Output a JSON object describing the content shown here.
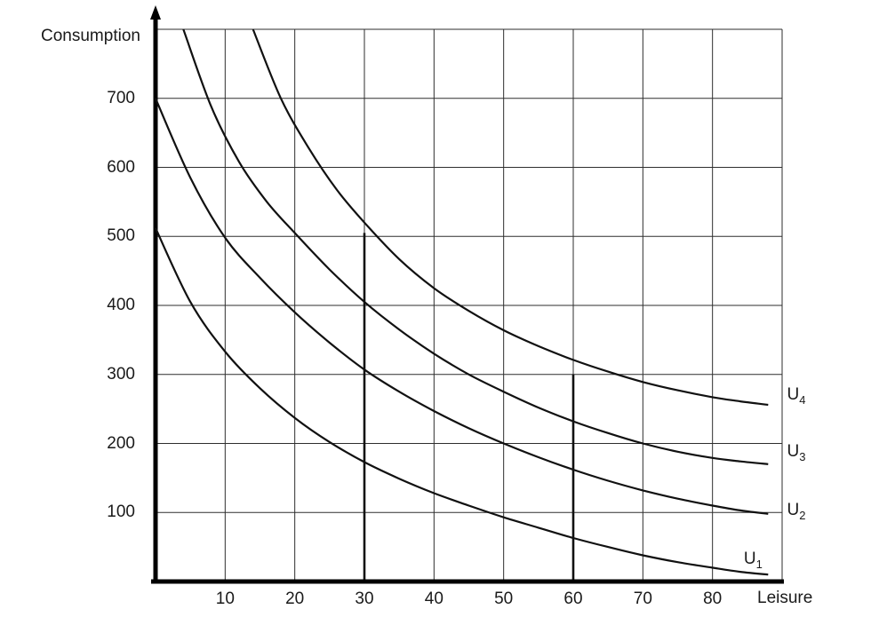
{
  "chart_data": {
    "type": "line",
    "title": "",
    "xlabel": "Leisure",
    "ylabel": "Consumption",
    "xlim": [
      0,
      90
    ],
    "ylim": [
      0,
      800
    ],
    "xticks": [
      10,
      20,
      30,
      40,
      50,
      60,
      70,
      80
    ],
    "yticks": [
      100,
      200,
      300,
      400,
      500,
      600,
      700
    ],
    "xgrid_step": 10,
    "ygrid_step": 100,
    "grid": true,
    "legend_position": "right-of-curves",
    "series": [
      {
        "name": "U1",
        "label_base": "U",
        "label_sub": "1",
        "label_at": {
          "x": 84.5,
          "y": 30
        },
        "points": [
          [
            0,
            512
          ],
          [
            5,
            405
          ],
          [
            10,
            333
          ],
          [
            15,
            280
          ],
          [
            20,
            237
          ],
          [
            25,
            202
          ],
          [
            30,
            173
          ],
          [
            35,
            149
          ],
          [
            40,
            128
          ],
          [
            45,
            110
          ],
          [
            50,
            93
          ],
          [
            55,
            78
          ],
          [
            60,
            63
          ],
          [
            65,
            50
          ],
          [
            70,
            38
          ],
          [
            75,
            28
          ],
          [
            80,
            20
          ],
          [
            84,
            14
          ],
          [
            88,
            10
          ]
        ]
      },
      {
        "name": "U2",
        "label_base": "U",
        "label_sub": "2",
        "label_at": {
          "x": 90.7,
          "y": 100
        },
        "points": [
          [
            0,
            700
          ],
          [
            5,
            585
          ],
          [
            10,
            498
          ],
          [
            15,
            440
          ],
          [
            20,
            390
          ],
          [
            25,
            346
          ],
          [
            30,
            307
          ],
          [
            35,
            275
          ],
          [
            40,
            247
          ],
          [
            45,
            222
          ],
          [
            50,
            200
          ],
          [
            55,
            180
          ],
          [
            60,
            162
          ],
          [
            65,
            146
          ],
          [
            70,
            132
          ],
          [
            75,
            120
          ],
          [
            80,
            110
          ],
          [
            84,
            103
          ],
          [
            88,
            98
          ]
        ]
      },
      {
        "name": "U3",
        "label_base": "U",
        "label_sub": "3",
        "label_at": {
          "x": 90.7,
          "y": 185
        },
        "points": [
          [
            4,
            800
          ],
          [
            8,
            688
          ],
          [
            12,
            608
          ],
          [
            16,
            550
          ],
          [
            20,
            505
          ],
          [
            25,
            452
          ],
          [
            30,
            405
          ],
          [
            35,
            365
          ],
          [
            40,
            330
          ],
          [
            45,
            300
          ],
          [
            50,
            275
          ],
          [
            55,
            252
          ],
          [
            60,
            232
          ],
          [
            65,
            215
          ],
          [
            70,
            200
          ],
          [
            75,
            188
          ],
          [
            80,
            179
          ],
          [
            84,
            174
          ],
          [
            88,
            170
          ]
        ]
      },
      {
        "name": "U4",
        "label_base": "U",
        "label_sub": "4",
        "label_at": {
          "x": 90.7,
          "y": 268
        },
        "points": [
          [
            14,
            800
          ],
          [
            18,
            700
          ],
          [
            22,
            628
          ],
          [
            26,
            568
          ],
          [
            30,
            520
          ],
          [
            35,
            467
          ],
          [
            40,
            425
          ],
          [
            45,
            392
          ],
          [
            50,
            364
          ],
          [
            55,
            341
          ],
          [
            60,
            321
          ],
          [
            65,
            304
          ],
          [
            70,
            289
          ],
          [
            75,
            277
          ],
          [
            80,
            267
          ],
          [
            84,
            261
          ],
          [
            88,
            256
          ]
        ]
      }
    ],
    "annotations": {
      "vlines": [
        {
          "x": 30,
          "y0": 0,
          "y1": 505
        },
        {
          "x": 60,
          "y0": 0,
          "y1": 300
        }
      ]
    },
    "colors": {
      "curve": "#111111",
      "grid": "#2e2e2e",
      "axis": "#000000",
      "annotation": "#111111",
      "text": "#1a1a1a",
      "background": "#ffffff"
    }
  }
}
